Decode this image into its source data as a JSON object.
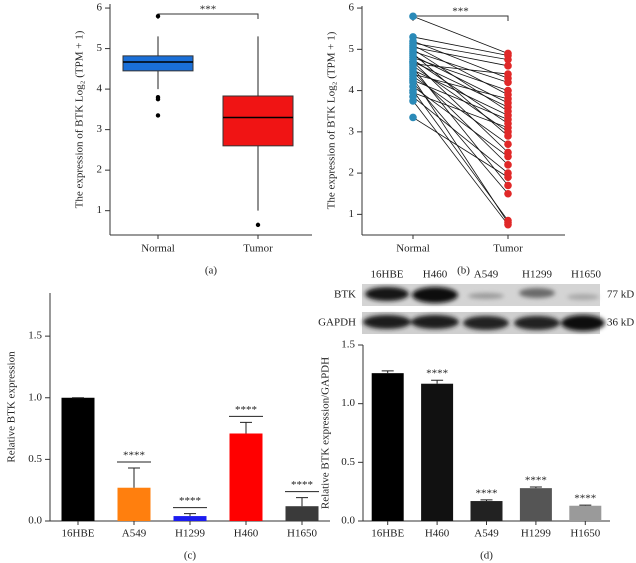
{
  "chart_data": [
    {
      "type": "box",
      "caption": "(a)",
      "y_label": "The expression of BTK Log₂ (TPM + 1)",
      "categories": [
        "Normal",
        "Tumor"
      ],
      "colors": [
        "#1a6fd8",
        "#f01414"
      ],
      "boxes": [
        {
          "min": 4.0,
          "q1": 4.45,
          "median": 4.67,
          "q3": 4.82,
          "max": 5.3,
          "outliers": [
            5.8,
            3.8,
            3.75,
            3.35
          ]
        },
        {
          "min": 1.0,
          "q1": 2.6,
          "median": 3.3,
          "q3": 3.83,
          "max": 5.3,
          "outliers": [
            0.65
          ]
        }
      ],
      "significance": "***",
      "ylim": [
        0.4,
        6.1
      ],
      "yticks": [
        1,
        2,
        3,
        4,
        5,
        6
      ]
    },
    {
      "type": "paired",
      "caption": "(b)",
      "y_label": "The expression of BTK Log₂ (TPM + 1)",
      "categories": [
        "Normal",
        "Tumor"
      ],
      "colors": [
        "#2a8ab8",
        "#e02828"
      ],
      "values": [
        [
          5.8,
          4.9
        ],
        [
          5.3,
          4.85
        ],
        [
          5.2,
          4.3
        ],
        [
          5.15,
          4.75
        ],
        [
          5.1,
          3.9
        ],
        [
          5.05,
          4.6
        ],
        [
          5.0,
          3.5
        ],
        [
          4.95,
          4.2
        ],
        [
          4.9,
          2.9
        ],
        [
          4.85,
          3.7
        ],
        [
          4.8,
          4.0
        ],
        [
          4.75,
          3.2
        ],
        [
          4.7,
          2.5
        ],
        [
          4.7,
          3.6
        ],
        [
          4.65,
          4.4
        ],
        [
          4.6,
          3.0
        ],
        [
          4.55,
          1.7
        ],
        [
          4.5,
          3.4
        ],
        [
          4.45,
          2.2
        ],
        [
          4.4,
          3.8
        ],
        [
          4.35,
          2.7
        ],
        [
          4.3,
          0.8
        ],
        [
          4.25,
          3.3
        ],
        [
          4.2,
          1.5
        ],
        [
          4.1,
          2.4
        ],
        [
          4.0,
          0.85
        ],
        [
          3.95,
          3.1
        ],
        [
          3.85,
          2.0
        ],
        [
          3.75,
          0.75
        ],
        [
          3.35,
          1.9
        ]
      ],
      "significance": "***",
      "ylim": [
        0.5,
        6.05
      ],
      "yticks": [
        1,
        2,
        3,
        4,
        5,
        6
      ]
    },
    {
      "type": "bar",
      "caption": "(c)",
      "y_label": "Relative BTK expression",
      "categories": [
        "16HBE",
        "A549",
        "H1299",
        "H460",
        "H1650"
      ],
      "values": [
        1.0,
        0.27,
        0.04,
        0.71,
        0.12
      ],
      "errors": [
        0,
        0.16,
        0.02,
        0.09,
        0.07
      ],
      "colors": [
        "#000000",
        "#ff7f0e",
        "#1c1cf0",
        "#ff0000",
        "#3a3a3a"
      ],
      "annotations": [
        null,
        "****",
        "****",
        "****",
        "****"
      ],
      "ylim": [
        0,
        1.85
      ],
      "yticks": [
        {
          "value": 0,
          "label": "0.0"
        },
        {
          "value": 0.5,
          "label": "0.5"
        },
        {
          "value": 1,
          "label": "1.0"
        },
        {
          "value": 1.5,
          "label": "1.5"
        }
      ]
    },
    {
      "type": "bar",
      "caption": "(d)",
      "y_label": "Relative BTK expression/GAPDH",
      "categories": [
        "16HBE",
        "H460",
        "A549",
        "H1299",
        "H1650"
      ],
      "values": [
        1.26,
        1.17,
        0.17,
        0.28,
        0.13
      ],
      "errors": [
        0.02,
        0.03,
        0.01,
        0.01,
        0.005
      ],
      "colors": [
        "#000000",
        "#111111",
        "#222222",
        "#555555",
        "#9a9a9a"
      ],
      "annotations": [
        null,
        "****",
        "****",
        "****",
        "****"
      ],
      "ylim": [
        0,
        1.5
      ],
      "yticks": [
        {
          "value": 0,
          "label": "0.0"
        },
        {
          "value": 0.5,
          "label": "0.5"
        },
        {
          "value": 1,
          "label": "1.0"
        },
        {
          "value": 1.5,
          "label": "1.5"
        }
      ],
      "blot": {
        "lanes": [
          "16HBE",
          "H460",
          "A549",
          "H1299",
          "H1650"
        ],
        "rows": [
          {
            "name": "BTK",
            "size": "77 kD"
          },
          {
            "name": "GAPDH",
            "size": "36 kD"
          }
        ]
      }
    }
  ]
}
